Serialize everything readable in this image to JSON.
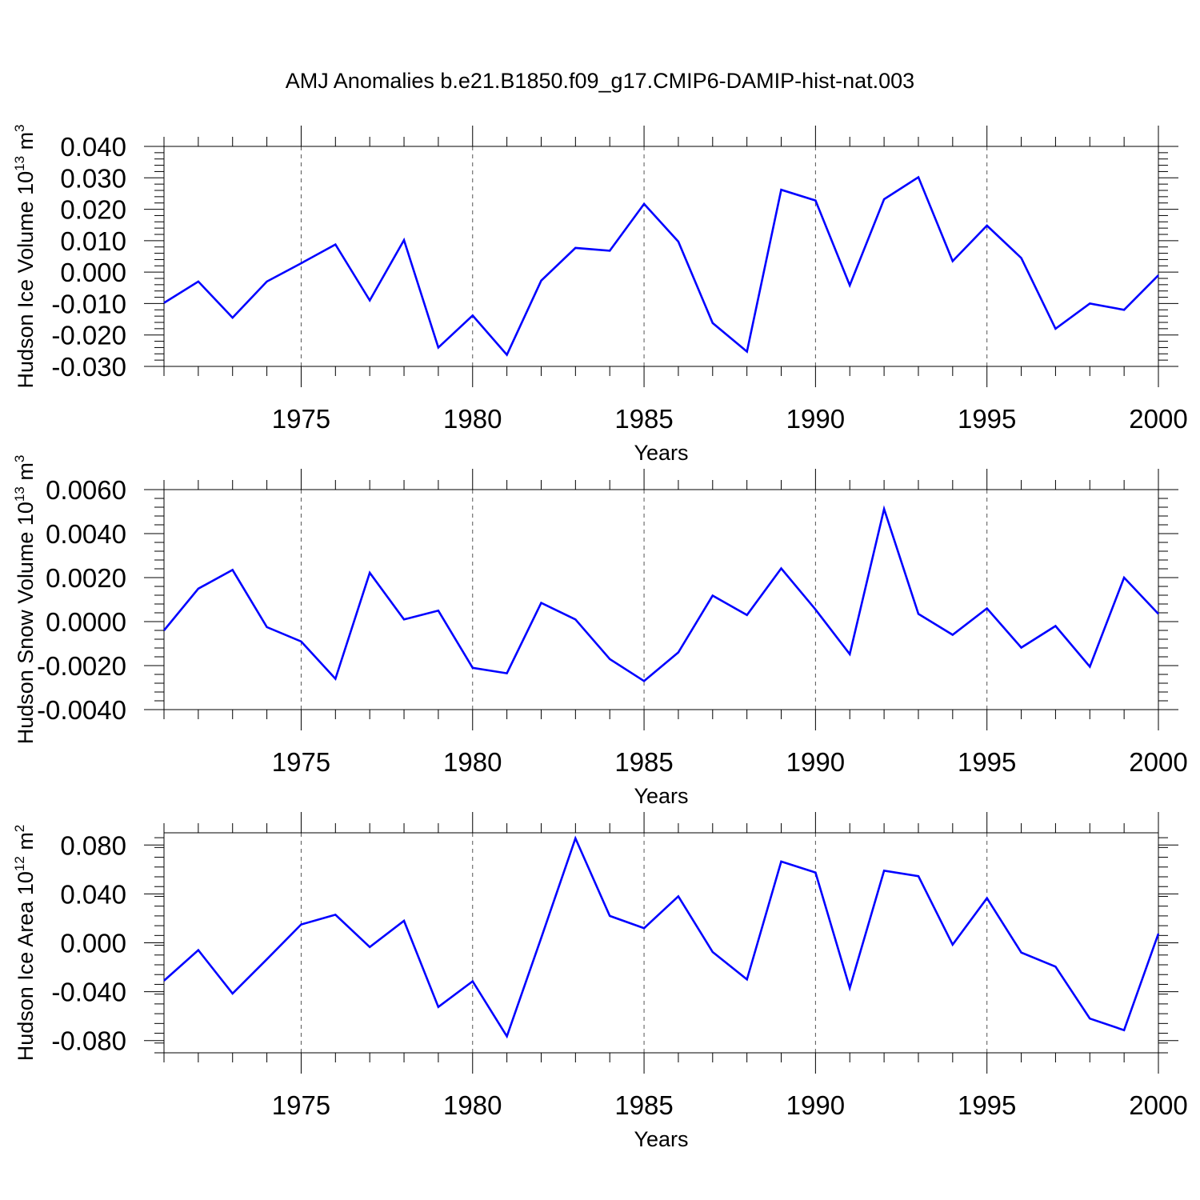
{
  "title": "AMJ Anomalies b.e21.B1850.f09_g17.CMIP6-DAMIP-hist-nat.003",
  "colors": {
    "series": "#0000ff",
    "axis": "#000000",
    "gridline": "#555555"
  },
  "chart_data": [
    {
      "type": "line",
      "ylabel": {
        "main": "Hudson Ice Volume 10",
        "exp": "13",
        "unit": " m",
        "unit_exp": "3"
      },
      "xlabel": "Years",
      "xlim": [
        1971,
        2000
      ],
      "ylim": [
        -0.03,
        0.04
      ],
      "yticks": [
        -0.03,
        -0.02,
        -0.01,
        0.0,
        0.01,
        0.02,
        0.03,
        0.04
      ],
      "ytick_labels": [
        "-0.030",
        "-0.020",
        "-0.010",
        "0.000",
        "0.010",
        "0.020",
        "0.030",
        "0.040"
      ],
      "xticks": [
        1975,
        1980,
        1985,
        1990,
        1995,
        2000
      ],
      "xtick_labels": [
        "1975",
        "1980",
        "1985",
        "1990",
        "1995",
        "2000"
      ],
      "x": [
        1971,
        1972,
        1973,
        1974,
        1975,
        1976,
        1977,
        1978,
        1979,
        1980,
        1981,
        1982,
        1983,
        1984,
        1985,
        1986,
        1987,
        1988,
        1989,
        1990,
        1991,
        1992,
        1993,
        1994,
        1995,
        1996,
        1997,
        1998,
        1999,
        2000
      ],
      "series": [
        {
          "values": [
            -0.0098,
            -0.003,
            -0.0145,
            -0.003,
            0.0028,
            0.0088,
            -0.009,
            0.0102,
            -0.024,
            -0.0138,
            -0.0263,
            -0.0027,
            0.0077,
            0.0068,
            0.0217,
            0.0097,
            -0.0162,
            -0.0253,
            0.0262,
            0.0228,
            -0.0042,
            0.0232,
            0.0302,
            0.0035,
            0.0148,
            0.0045,
            -0.018,
            -0.01,
            -0.012,
            -0.001
          ]
        }
      ]
    },
    {
      "type": "line",
      "ylabel": {
        "main": "Hudson Snow Volume 10",
        "exp": "13",
        "unit": " m",
        "unit_exp": "3"
      },
      "xlabel": "Years",
      "xlim": [
        1971,
        2000
      ],
      "ylim": [
        -0.004,
        0.006
      ],
      "yticks": [
        -0.004,
        -0.002,
        0.0,
        0.002,
        0.004,
        0.006
      ],
      "ytick_labels": [
        "-0.0040",
        "-0.0020",
        "0.0000",
        "0.0020",
        "0.0040",
        "0.0060"
      ],
      "xticks": [
        1975,
        1980,
        1985,
        1990,
        1995,
        2000
      ],
      "xtick_labels": [
        "1975",
        "1980",
        "1985",
        "1990",
        "1995",
        "2000"
      ],
      "x": [
        1971,
        1972,
        1973,
        1974,
        1975,
        1976,
        1977,
        1978,
        1979,
        1980,
        1981,
        1982,
        1983,
        1984,
        1985,
        1986,
        1987,
        1988,
        1989,
        1990,
        1991,
        1992,
        1993,
        1994,
        1995,
        1996,
        1997,
        1998,
        1999,
        2000
      ],
      "series": [
        {
          "values": [
            -0.0004,
            0.0015,
            0.00235,
            -0.00025,
            -0.0009,
            -0.0026,
            0.00222,
            0.0001,
            0.0005,
            -0.0021,
            -0.00235,
            0.00085,
            0.0001,
            -0.0017,
            -0.0027,
            -0.0014,
            0.00118,
            0.0003,
            0.00242,
            0.00055,
            -0.00148,
            0.00512,
            0.00035,
            -0.0006,
            0.0006,
            -0.00118,
            -0.0002,
            -0.00205,
            0.002,
            0.00035
          ]
        }
      ]
    },
    {
      "type": "line",
      "ylabel": {
        "main": "Hudson Ice Area 10",
        "exp": "12",
        "unit": " m",
        "unit_exp": "2"
      },
      "xlabel": "Years",
      "xlim": [
        1971,
        2000
      ],
      "ylim": [
        -0.09,
        0.09
      ],
      "yticks": [
        -0.08,
        -0.04,
        0.0,
        0.04,
        0.08
      ],
      "ytick_labels": [
        "-0.080",
        "-0.040",
        "0.000",
        "0.040",
        "0.080"
      ],
      "xticks": [
        1975,
        1980,
        1985,
        1990,
        1995,
        2000
      ],
      "xtick_labels": [
        "1975",
        "1980",
        "1985",
        "1990",
        "1995",
        "2000"
      ],
      "x": [
        1971,
        1972,
        1973,
        1974,
        1975,
        1976,
        1977,
        1978,
        1979,
        1980,
        1981,
        1982,
        1983,
        1984,
        1985,
        1986,
        1987,
        1988,
        1989,
        1990,
        1991,
        1992,
        1993,
        1994,
        1995,
        1996,
        1997,
        1998,
        1999,
        2000
      ],
      "series": [
        {
          "values": [
            -0.031,
            -0.006,
            -0.0415,
            -0.0135,
            0.015,
            0.023,
            -0.0035,
            0.018,
            -0.0525,
            -0.0315,
            -0.0765,
            0.004,
            0.0855,
            0.022,
            0.012,
            0.038,
            -0.0075,
            -0.03,
            0.0665,
            0.0575,
            -0.037,
            0.059,
            0.0545,
            -0.0015,
            0.0365,
            -0.008,
            -0.0195,
            -0.062,
            -0.0715,
            0.0075
          ]
        }
      ]
    }
  ]
}
